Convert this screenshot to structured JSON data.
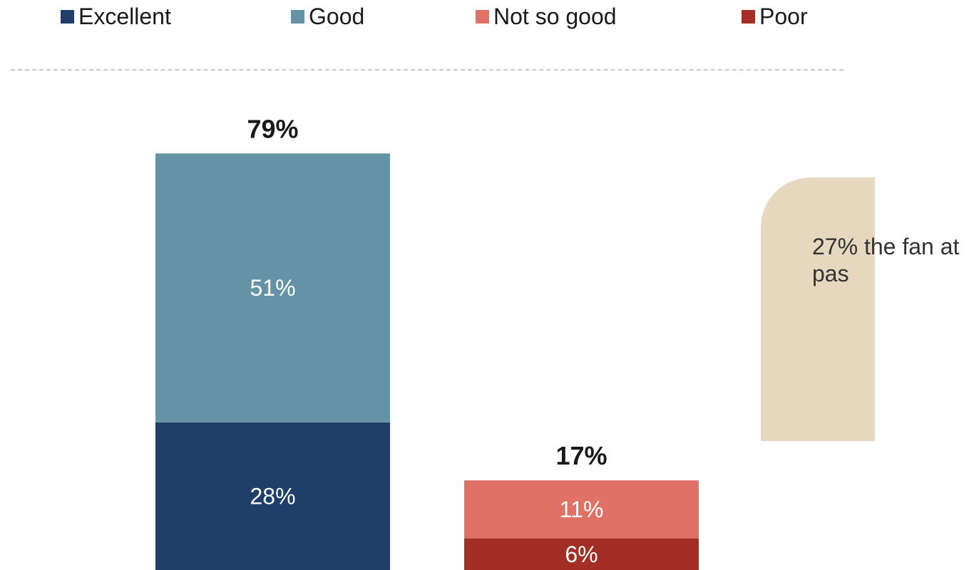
{
  "legend": [
    {
      "label": "Excellent",
      "color": "#1e3f69"
    },
    {
      "label": "Good",
      "color": "#6493a6"
    },
    {
      "label": "Not so good",
      "color": "#e07166"
    },
    {
      "label": "Poor",
      "color": "#a22e25"
    }
  ],
  "callout": {
    "text": "27% the fan at pas"
  },
  "chart_data": {
    "type": "bar",
    "stacked": true,
    "ylim": [
      0,
      100
    ],
    "grid": false,
    "legend_position": "top",
    "bars": [
      {
        "total": 79,
        "total_label": "79%",
        "segments": [
          {
            "series": "Excellent",
            "value": 28,
            "label": "28%",
            "color": "#1e3f69"
          },
          {
            "series": "Good",
            "value": 51,
            "label": "51%",
            "color": "#6493a6"
          }
        ]
      },
      {
        "total": 17,
        "total_label": "17%",
        "segments": [
          {
            "series": "Poor",
            "value": 6,
            "label": "6%",
            "color": "#a22e25"
          },
          {
            "series": "Not so good",
            "value": 11,
            "label": "11%",
            "color": "#e07166"
          }
        ]
      }
    ]
  }
}
